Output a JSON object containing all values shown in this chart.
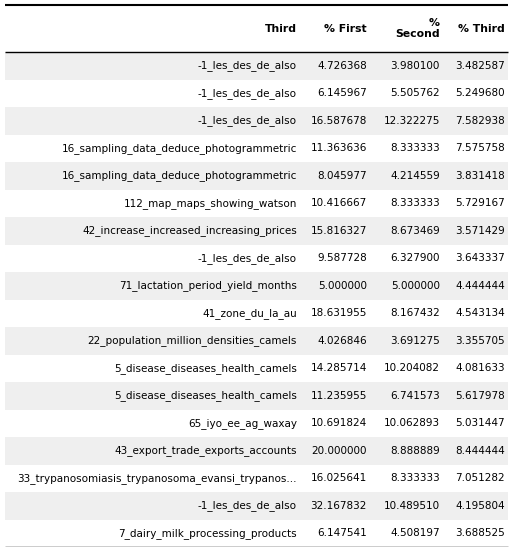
{
  "col_header_display": [
    "Third",
    "% First",
    "%\nSecond",
    "% Third"
  ],
  "rows": [
    [
      "-1_les_des_de_also",
      "4.726368",
      "3.980100",
      "3.482587"
    ],
    [
      "-1_les_des_de_also",
      "6.145967",
      "5.505762",
      "5.249680"
    ],
    [
      "-1_les_des_de_also",
      "16.587678",
      "12.322275",
      "7.582938"
    ],
    [
      "16_sampling_data_deduce_photogrammetric",
      "11.363636",
      "8.333333",
      "7.575758"
    ],
    [
      "16_sampling_data_deduce_photogrammetric",
      "8.045977",
      "4.214559",
      "3.831418"
    ],
    [
      "112_map_maps_showing_watson",
      "10.416667",
      "8.333333",
      "5.729167"
    ],
    [
      "42_increase_increased_increasing_prices",
      "15.816327",
      "8.673469",
      "3.571429"
    ],
    [
      "-1_les_des_de_also",
      "9.587728",
      "6.327900",
      "3.643337"
    ],
    [
      "71_lactation_period_yield_months",
      "5.000000",
      "5.000000",
      "4.444444"
    ],
    [
      "41_zone_du_la_au",
      "18.631955",
      "8.167432",
      "4.543134"
    ],
    [
      "22_population_million_densities_camels",
      "4.026846",
      "3.691275",
      "3.355705"
    ],
    [
      "5_disease_diseases_health_camels",
      "14.285714",
      "10.204082",
      "4.081633"
    ],
    [
      "5_disease_diseases_health_camels",
      "11.235955",
      "6.741573",
      "5.617978"
    ],
    [
      "65_iyo_ee_ag_waxay",
      "10.691824",
      "10.062893",
      "5.031447"
    ],
    [
      "43_export_trade_exports_accounts",
      "20.000000",
      "8.888889",
      "8.444444"
    ],
    [
      "33_trypanosomiasis_trypanosoma_evansi_trypanos...",
      "16.025641",
      "8.333333",
      "7.051282"
    ],
    [
      "-1_les_des_de_also",
      "32.167832",
      "10.489510",
      "4.195804"
    ],
    [
      "7_dairy_milk_processing_products",
      "6.147541",
      "4.508197",
      "3.688525"
    ]
  ],
  "row_bg_light": "#efefef",
  "row_bg_white": "#ffffff",
  "header_bg": "#ffffff",
  "font_size": 7.5,
  "header_font_size": 7.8,
  "fig_width": 5.15,
  "fig_height": 5.47,
  "dpi": 100
}
